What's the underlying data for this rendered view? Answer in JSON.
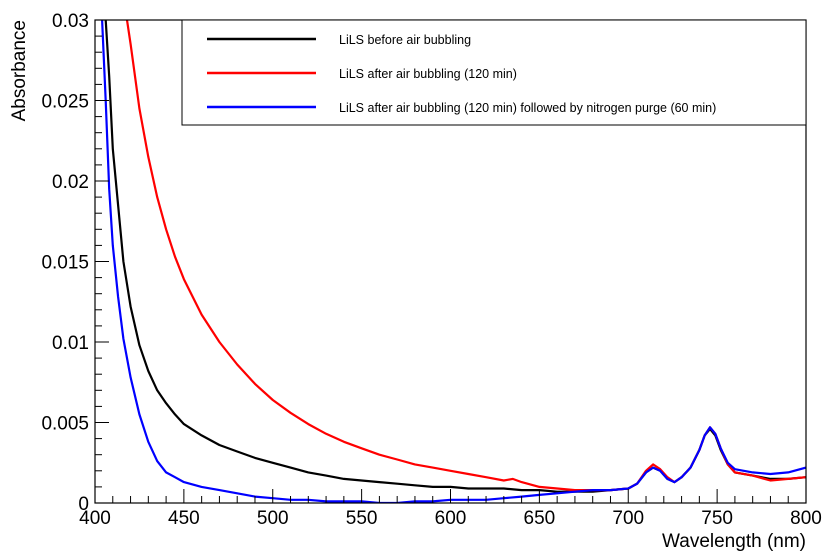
{
  "chart_data": {
    "type": "line",
    "title": "",
    "xlabel": "Wavelength (nm)",
    "ylabel": "Absorbance",
    "xlim": [
      400,
      800
    ],
    "ylim": [
      0,
      0.03
    ],
    "x_ticks": [
      400,
      450,
      500,
      550,
      600,
      650,
      700,
      750,
      800
    ],
    "x_tick_labels": [
      "400",
      "450",
      "500",
      "550",
      "600",
      "650",
      "700",
      "750",
      "800"
    ],
    "y_ticks": [
      0,
      0.005,
      0.01,
      0.015,
      0.02,
      0.025,
      0.03
    ],
    "y_tick_labels": [
      "0",
      "0.005",
      "0.01",
      "0.015",
      "0.02",
      "0.025",
      "0.03"
    ],
    "grid": false,
    "legend_position": "top-right",
    "series": [
      {
        "name": "LiLS before air bubbling",
        "color": "#000000",
        "points": [
          [
            406,
            0.03
          ],
          [
            408,
            0.0265
          ],
          [
            410,
            0.022
          ],
          [
            413,
            0.0185
          ],
          [
            416,
            0.015
          ],
          [
            420,
            0.0122
          ],
          [
            425,
            0.0098
          ],
          [
            430,
            0.0082
          ],
          [
            435,
            0.007
          ],
          [
            440,
            0.0062
          ],
          [
            445,
            0.0055
          ],
          [
            450,
            0.0049
          ],
          [
            460,
            0.0042
          ],
          [
            470,
            0.0036
          ],
          [
            480,
            0.0032
          ],
          [
            490,
            0.0028
          ],
          [
            500,
            0.0025
          ],
          [
            510,
            0.0022
          ],
          [
            520,
            0.0019
          ],
          [
            530,
            0.0017
          ],
          [
            540,
            0.0015
          ],
          [
            550,
            0.0014
          ],
          [
            560,
            0.0013
          ],
          [
            570,
            0.0012
          ],
          [
            580,
            0.0011
          ],
          [
            590,
            0.001
          ],
          [
            600,
            0.001
          ],
          [
            610,
            0.0009
          ],
          [
            620,
            0.0009
          ],
          [
            630,
            0.0009
          ],
          [
            640,
            0.0008
          ],
          [
            650,
            0.0008
          ],
          [
            660,
            0.0007
          ],
          [
            670,
            0.0007
          ],
          [
            680,
            0.0007
          ],
          [
            690,
            0.0008
          ],
          [
            700,
            0.0009
          ],
          [
            705,
            0.0012
          ],
          [
            710,
            0.0019
          ],
          [
            714,
            0.0022
          ],
          [
            718,
            0.002
          ],
          [
            722,
            0.0015
          ],
          [
            726,
            0.0013
          ],
          [
            730,
            0.0016
          ],
          [
            735,
            0.0022
          ],
          [
            740,
            0.0033
          ],
          [
            743,
            0.0042
          ],
          [
            746,
            0.0046
          ],
          [
            749,
            0.0042
          ],
          [
            752,
            0.0033
          ],
          [
            756,
            0.0024
          ],
          [
            760,
            0.0019
          ],
          [
            770,
            0.0017
          ],
          [
            780,
            0.0015
          ],
          [
            790,
            0.0015
          ],
          [
            800,
            0.0016
          ]
        ]
      },
      {
        "name": "LiLS after air bubbling (120 min)",
        "color": "#ff0000",
        "points": [
          [
            418,
            0.03
          ],
          [
            420,
            0.0285
          ],
          [
            425,
            0.0245
          ],
          [
            430,
            0.0215
          ],
          [
            435,
            0.019
          ],
          [
            440,
            0.017
          ],
          [
            445,
            0.0153
          ],
          [
            450,
            0.0139
          ],
          [
            460,
            0.0117
          ],
          [
            470,
            0.01
          ],
          [
            480,
            0.0086
          ],
          [
            490,
            0.0074
          ],
          [
            500,
            0.0064
          ],
          [
            510,
            0.0056
          ],
          [
            520,
            0.0049
          ],
          [
            530,
            0.0043
          ],
          [
            540,
            0.0038
          ],
          [
            550,
            0.0034
          ],
          [
            560,
            0.003
          ],
          [
            570,
            0.0027
          ],
          [
            580,
            0.0024
          ],
          [
            590,
            0.0022
          ],
          [
            600,
            0.002
          ],
          [
            610,
            0.0018
          ],
          [
            620,
            0.0016
          ],
          [
            630,
            0.0014
          ],
          [
            635,
            0.0015
          ],
          [
            640,
            0.0013
          ],
          [
            650,
            0.001
          ],
          [
            660,
            0.0009
          ],
          [
            670,
            0.0008
          ],
          [
            680,
            0.0008
          ],
          [
            690,
            0.0008
          ],
          [
            700,
            0.0009
          ],
          [
            705,
            0.0012
          ],
          [
            710,
            0.002
          ],
          [
            714,
            0.0024
          ],
          [
            718,
            0.0021
          ],
          [
            722,
            0.0016
          ],
          [
            726,
            0.0013
          ],
          [
            730,
            0.0016
          ],
          [
            735,
            0.0022
          ],
          [
            740,
            0.0033
          ],
          [
            743,
            0.0042
          ],
          [
            746,
            0.0047
          ],
          [
            749,
            0.0043
          ],
          [
            752,
            0.0034
          ],
          [
            756,
            0.0024
          ],
          [
            760,
            0.0019
          ],
          [
            770,
            0.0017
          ],
          [
            780,
            0.0014
          ],
          [
            790,
            0.0015
          ],
          [
            800,
            0.0016
          ]
        ]
      },
      {
        "name": "LiLS after air bubbling (120 min) followed by nitrogen purge (60 min)",
        "color": "#0000ff",
        "points": [
          [
            404,
            0.03
          ],
          [
            406,
            0.025
          ],
          [
            408,
            0.0195
          ],
          [
            410,
            0.016
          ],
          [
            413,
            0.0128
          ],
          [
            416,
            0.0102
          ],
          [
            420,
            0.0078
          ],
          [
            425,
            0.0055
          ],
          [
            430,
            0.0038
          ],
          [
            435,
            0.0026
          ],
          [
            440,
            0.0019
          ],
          [
            445,
            0.0016
          ],
          [
            450,
            0.0013
          ],
          [
            460,
            0.001
          ],
          [
            470,
            0.0008
          ],
          [
            480,
            0.0006
          ],
          [
            490,
            0.0004
          ],
          [
            500,
            0.0003
          ],
          [
            510,
            0.0002
          ],
          [
            520,
            0.0002
          ],
          [
            530,
            0.0001
          ],
          [
            540,
            0.0001
          ],
          [
            550,
            0.0001
          ],
          [
            560,
            0
          ],
          [
            570,
            0
          ],
          [
            580,
            0.0001
          ],
          [
            590,
            0.0001
          ],
          [
            600,
            0.0002
          ],
          [
            610,
            0.0002
          ],
          [
            620,
            0.0002
          ],
          [
            630,
            0.0003
          ],
          [
            640,
            0.0004
          ],
          [
            650,
            0.0005
          ],
          [
            660,
            0.0006
          ],
          [
            670,
            0.0007
          ],
          [
            680,
            0.0008
          ],
          [
            690,
            0.0008
          ],
          [
            700,
            0.0009
          ],
          [
            705,
            0.0012
          ],
          [
            710,
            0.0019
          ],
          [
            714,
            0.0022
          ],
          [
            718,
            0.002
          ],
          [
            722,
            0.0015
          ],
          [
            726,
            0.0013
          ],
          [
            730,
            0.0016
          ],
          [
            735,
            0.0022
          ],
          [
            740,
            0.0033
          ],
          [
            743,
            0.0042
          ],
          [
            746,
            0.0047
          ],
          [
            749,
            0.0043
          ],
          [
            752,
            0.0034
          ],
          [
            756,
            0.0025
          ],
          [
            760,
            0.0021
          ],
          [
            770,
            0.0019
          ],
          [
            780,
            0.0018
          ],
          [
            790,
            0.0019
          ],
          [
            800,
            0.0022
          ]
        ]
      }
    ]
  }
}
